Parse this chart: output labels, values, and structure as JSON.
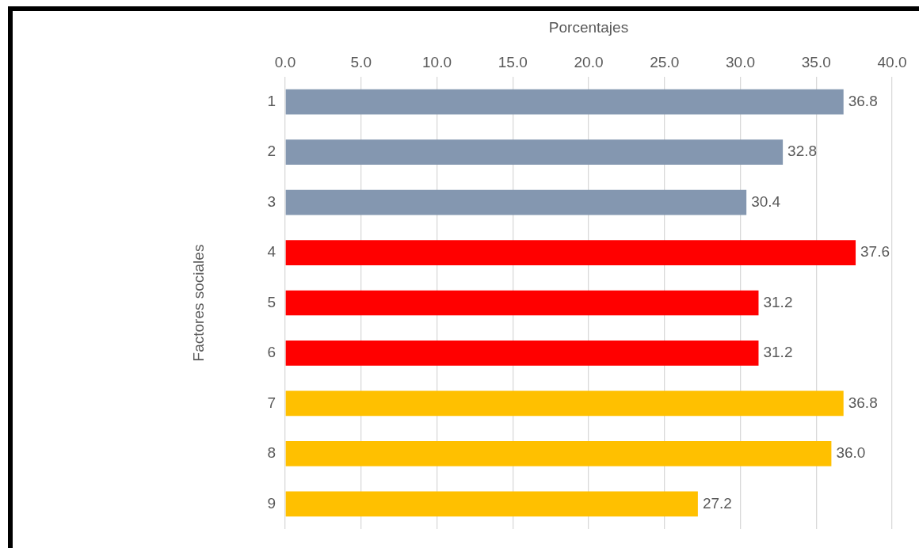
{
  "chart_data": {
    "type": "bar",
    "orientation": "horizontal",
    "xlabel": "Porcentajes",
    "ylabel": "Factores sociales",
    "categories": [
      "1",
      "2",
      "3",
      "4",
      "5",
      "6",
      "7",
      "8",
      "9"
    ],
    "values": [
      36.8,
      32.8,
      30.4,
      37.6,
      31.2,
      31.2,
      36.8,
      36.0,
      27.2
    ],
    "value_labels": [
      "36.8",
      "32.8",
      "30.4",
      "37.6",
      "31.2",
      "31.2",
      "36.8",
      "36.0",
      "27.2"
    ],
    "colors": [
      "#8497b0",
      "#8497b0",
      "#8497b0",
      "#ff0000",
      "#ff0000",
      "#ff0000",
      "#ffc000",
      "#ffc000",
      "#ffc000"
    ],
    "xlim": [
      0,
      40
    ],
    "xticks": [
      {
        "value": 0,
        "label": "0.0"
      },
      {
        "value": 5,
        "label": "5.0"
      },
      {
        "value": 10,
        "label": "10.0"
      },
      {
        "value": 15,
        "label": "15.0"
      },
      {
        "value": 20,
        "label": "20.0"
      },
      {
        "value": 25,
        "label": "25.0"
      },
      {
        "value": 30,
        "label": "30.0"
      },
      {
        "value": 35,
        "label": "35.0"
      },
      {
        "value": 40,
        "label": "40.0"
      }
    ],
    "grid": "x",
    "legend": false
  }
}
